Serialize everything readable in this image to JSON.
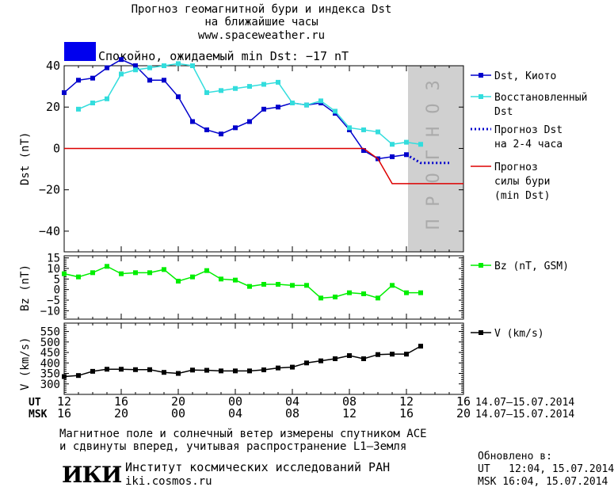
{
  "header": {
    "title_line1": "Прогноз геомагнитной бури и индекса Dst",
    "title_line2": "на ближайшие часы",
    "website": "www.spaceweather.ru",
    "status_text": "Спокойно, ожидаемый min Dst: −17 nT",
    "status_color": "#0000ee"
  },
  "chart_data": [
    {
      "type": "line",
      "ylabel": "Dst (nT)",
      "ylim": [
        -50,
        40
      ],
      "yticks": [
        40,
        20,
        0,
        -20,
        -40
      ],
      "x_hours_ut": [
        12,
        40
      ],
      "forecast_region_label": "ПРОГНОЗ",
      "grid": false,
      "legend_position": "right",
      "series": [
        {
          "name": "Dst, Киото",
          "color": "#0000cc",
          "marker": "square",
          "style": "solid",
          "x": [
            12,
            13,
            14,
            15,
            16,
            17,
            18,
            19,
            20,
            21,
            22,
            23,
            24,
            25,
            26,
            27,
            28,
            29,
            30,
            31,
            32,
            33,
            34,
            35,
            36
          ],
          "values": [
            27,
            33,
            34,
            39,
            43,
            40,
            33,
            33,
            25,
            13,
            9,
            7,
            10,
            13,
            19,
            20,
            22,
            21,
            22,
            17,
            9,
            -1,
            -5,
            -4,
            -3
          ]
        },
        {
          "name": "Восстановленный Dst",
          "color": "#33dddd",
          "marker": "square",
          "style": "solid",
          "x": [
            13,
            14,
            15,
            16,
            17,
            18,
            19,
            20,
            21,
            22,
            23,
            24,
            25,
            26,
            27,
            28,
            29,
            30,
            31,
            32,
            33,
            34,
            35,
            36,
            37
          ],
          "values": [
            19,
            22,
            24,
            36,
            38,
            39,
            40,
            41,
            40,
            27,
            28,
            29,
            30,
            31,
            32,
            22,
            21,
            23,
            18,
            10,
            9,
            8,
            2,
            3,
            2
          ]
        },
        {
          "name": "Прогноз Dst на 2-4 часа",
          "color": "#0000cc",
          "marker": "none",
          "style": "dotted",
          "x": [
            36,
            36.5,
            37,
            38,
            39
          ],
          "values": [
            -3,
            -5,
            -7,
            -7,
            -7
          ]
        },
        {
          "name": "Прогноз силы бури (min Dst)",
          "color": "#dd0000",
          "marker": "none",
          "style": "solid",
          "x": [
            12,
            33,
            34,
            35,
            36,
            37,
            38,
            39,
            40
          ],
          "values": [
            0,
            0,
            -5,
            -17,
            -17,
            -17,
            -17,
            -17,
            -17
          ]
        }
      ]
    },
    {
      "type": "line",
      "ylabel": "Bz (nT)",
      "ylim": [
        -14,
        16
      ],
      "yticks": [
        15,
        10,
        5,
        0,
        -5,
        -10
      ],
      "legend_position": "right",
      "series": [
        {
          "name": "Bz (nT, GSM)",
          "color": "#00ee00",
          "marker": "square",
          "x": [
            12,
            13,
            14,
            15,
            16,
            17,
            18,
            19,
            20,
            21,
            22,
            23,
            24,
            25,
            26,
            27,
            28,
            29,
            30,
            31,
            32,
            33,
            34,
            35,
            36,
            37
          ],
          "values": [
            7.5,
            6,
            8,
            11,
            7.5,
            8,
            8,
            9.5,
            4,
            6,
            9,
            5,
            4.5,
            1.5,
            2.5,
            2.5,
            2,
            2,
            -4,
            -3.5,
            -1.5,
            -2,
            -4,
            2,
            -1.5,
            -1.5
          ]
        }
      ]
    },
    {
      "type": "line",
      "ylabel": "V (km/s)",
      "ylim": [
        250,
        590
      ],
      "yticks": [
        550,
        500,
        450,
        400,
        350,
        300
      ],
      "legend_position": "right",
      "series": [
        {
          "name": "V (km/s)",
          "color": "#000000",
          "marker": "square",
          "x": [
            12,
            13,
            14,
            15,
            16,
            17,
            18,
            19,
            20,
            21,
            22,
            23,
            24,
            25,
            26,
            27,
            28,
            29,
            30,
            31,
            32,
            33,
            34,
            35,
            36,
            37
          ],
          "values": [
            335,
            340,
            360,
            370,
            370,
            368,
            368,
            355,
            350,
            366,
            365,
            362,
            362,
            362,
            367,
            376,
            380,
            400,
            410,
            420,
            435,
            420,
            440,
            442,
            442,
            480
          ]
        }
      ]
    }
  ],
  "x_axis": {
    "ut_label": "UT",
    "msk_label": "MSK",
    "ut_ticks": [
      "12",
      "16",
      "20",
      "00",
      "04",
      "08",
      "12",
      "16"
    ],
    "msk_ticks": [
      "16",
      "20",
      "00",
      "04",
      "08",
      "12",
      "16",
      "20"
    ],
    "date_range_ut": "14.07–15.07.2014",
    "date_range_msk": "14.07–15.07.2014"
  },
  "footer": {
    "note_line1": "Магнитное поле и солнечный ветер измерены спутником ACE",
    "note_line2": "и сдвинуты вперед, учитывая распространение L1–Земля",
    "institute": "Институт космических исследований РАН",
    "institute_url": "iki.cosmos.ru",
    "logo_text": "ИКИ",
    "updated_label": "Обновлено в:",
    "updated_ut": "UT   12:04, 15.07.2014",
    "updated_msk": "MSK 16:04, 15.07.2014"
  }
}
